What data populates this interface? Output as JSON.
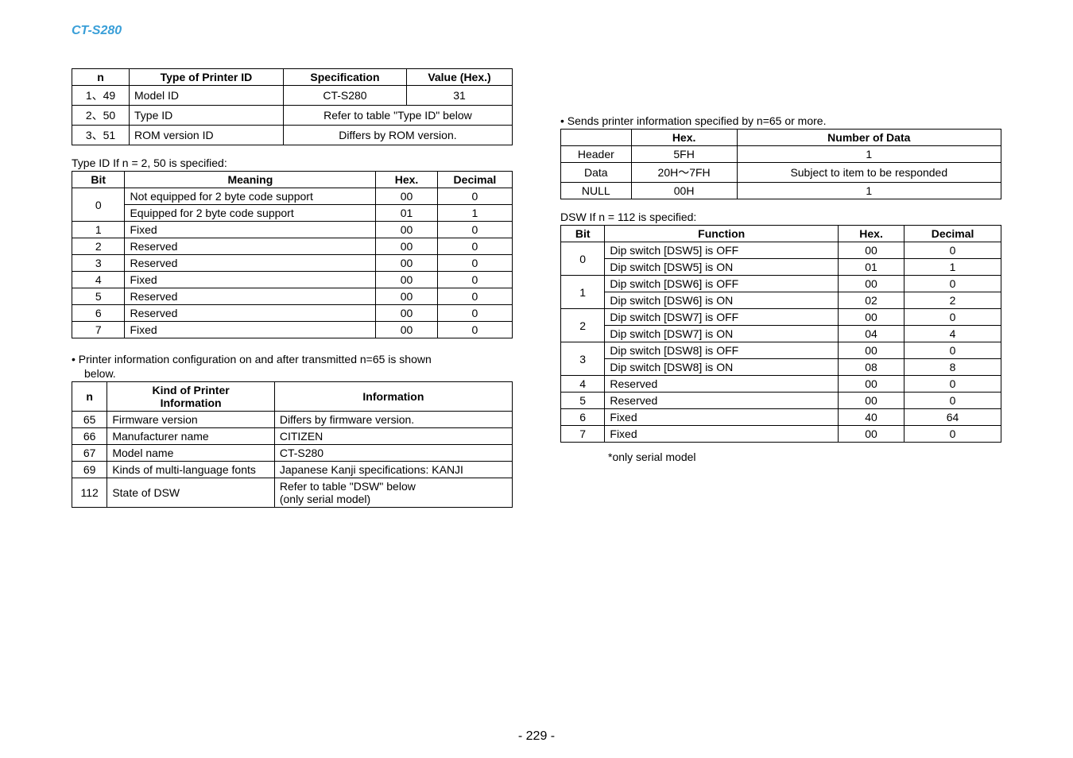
{
  "model_title": "CT-S280",
  "page_number": "- 229 -",
  "left": {
    "printer_id_table": {
      "headers": [
        "n",
        "Type of Printer ID",
        "Specification",
        "Value (Hex.)"
      ],
      "rows": [
        {
          "n": "1、49",
          "type": "Model ID",
          "spec": "CT-S280",
          "val": "31",
          "span": false
        },
        {
          "n": "2、50",
          "type": "Type ID",
          "merged": "Refer to table \"Type ID\" below",
          "span": true
        },
        {
          "n": "3、51",
          "type": "ROM version ID",
          "merged": "Differs by ROM version.",
          "span": true
        }
      ]
    },
    "typeid_caption": "Type ID If n = 2, 50 is specified:",
    "typeid_table": {
      "headers": [
        "Bit",
        "Meaning",
        "Hex.",
        "Decimal"
      ],
      "rows": [
        {
          "bit": "0",
          "meaning": "Not equipped for 2 byte code support",
          "hex": "00",
          "dec": "0",
          "rowspan": 2
        },
        {
          "bit": "",
          "meaning": "Equipped for 2 byte code support",
          "hex": "01",
          "dec": "1",
          "rowspan": 0
        },
        {
          "bit": "1",
          "meaning": "Fixed",
          "hex": "00",
          "dec": "0",
          "rowspan": 1
        },
        {
          "bit": "2",
          "meaning": "Reserved",
          "hex": "00",
          "dec": "0",
          "rowspan": 1
        },
        {
          "bit": "3",
          "meaning": "Reserved",
          "hex": "00",
          "dec": "0",
          "rowspan": 1
        },
        {
          "bit": "4",
          "meaning": "Fixed",
          "hex": "00",
          "dec": "0",
          "rowspan": 1
        },
        {
          "bit": "5",
          "meaning": "Reserved",
          "hex": "00",
          "dec": "0",
          "rowspan": 1
        },
        {
          "bit": "6",
          "meaning": "Reserved",
          "hex": "00",
          "dec": "0",
          "rowspan": 1
        },
        {
          "bit": "7",
          "meaning": "Fixed",
          "hex": "00",
          "dec": "0",
          "rowspan": 1
        }
      ]
    },
    "info_bullet": "• Printer information configuration on and after transmitted n=65 is shown",
    "info_bullet2": "below.",
    "info_table": {
      "headers": [
        "n",
        "Kind of Printer\nInformation",
        "Information"
      ],
      "rows": [
        {
          "n": "65",
          "kind": "Firmware version",
          "info": "Differs by firmware version."
        },
        {
          "n": "66",
          "kind": "Manufacturer name",
          "info": "CITIZEN"
        },
        {
          "n": "67",
          "kind": "Model name",
          "info": "CT-S280"
        },
        {
          "n": "69",
          "kind": "Kinds of multi-language fonts",
          "info": "Japanese Kanji specifications: KANJI"
        },
        {
          "n": "112",
          "kind": "State of DSW",
          "info": "Refer to table \"DSW\" below\n(only serial model)"
        }
      ]
    }
  },
  "right": {
    "sends_bullet": "• Sends printer information specified by n=65 or more.",
    "sends_table": {
      "headers": [
        "",
        "Hex.",
        "Number of Data"
      ],
      "rows": [
        {
          "c0": "Header",
          "c1": "5FH",
          "c2": "1"
        },
        {
          "c0": "Data",
          "c1": "20H～7FH",
          "c2": "Subject to item to be responded"
        },
        {
          "c0": "NULL",
          "c1": "00H",
          "c2": "1"
        }
      ]
    },
    "dsw_caption": "DSW If n = 112 is specified:",
    "dsw_table": {
      "headers": [
        "Bit",
        "Function",
        "Hex.",
        "Decimal"
      ],
      "rows": [
        {
          "bit": "0",
          "func": "Dip switch [DSW5] is OFF",
          "hex": "00",
          "dec": "0",
          "rowspan": 2
        },
        {
          "bit": "",
          "func": "Dip switch [DSW5] is ON",
          "hex": "01",
          "dec": "1",
          "rowspan": 0
        },
        {
          "bit": "1",
          "func": "Dip switch [DSW6] is OFF",
          "hex": "00",
          "dec": "0",
          "rowspan": 2
        },
        {
          "bit": "",
          "func": "Dip switch [DSW6] is ON",
          "hex": "02",
          "dec": "2",
          "rowspan": 0
        },
        {
          "bit": "2",
          "func": "Dip switch [DSW7] is OFF",
          "hex": "00",
          "dec": "0",
          "rowspan": 2
        },
        {
          "bit": "",
          "func": "Dip switch [DSW7] is ON",
          "hex": "04",
          "dec": "4",
          "rowspan": 0
        },
        {
          "bit": "3",
          "func": "Dip switch [DSW8] is OFF",
          "hex": "00",
          "dec": "0",
          "rowspan": 2
        },
        {
          "bit": "",
          "func": "Dip switch [DSW8] is ON",
          "hex": "08",
          "dec": "8",
          "rowspan": 0
        },
        {
          "bit": "4",
          "func": "Reserved",
          "hex": "00",
          "dec": "0",
          "rowspan": 1
        },
        {
          "bit": "5",
          "func": "Reserved",
          "hex": "00",
          "dec": "0",
          "rowspan": 1
        },
        {
          "bit": "6",
          "func": "Fixed",
          "hex": "40",
          "dec": "64",
          "rowspan": 1
        },
        {
          "bit": "7",
          "func": "Fixed",
          "hex": "00",
          "dec": "0",
          "rowspan": 1
        }
      ]
    },
    "footnote": "*only serial model"
  }
}
